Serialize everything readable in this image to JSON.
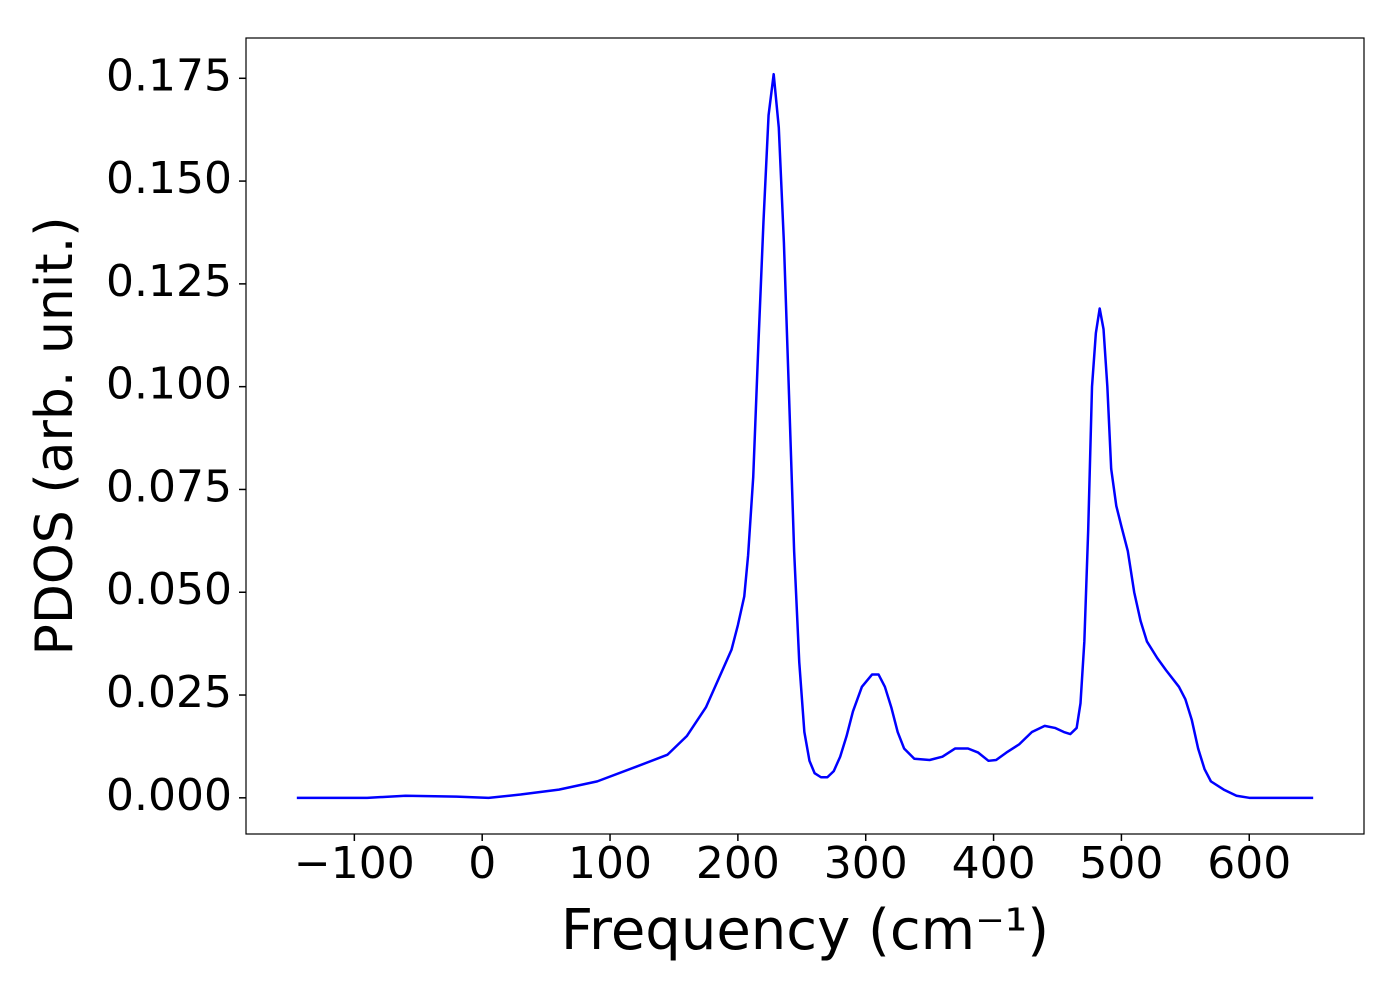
{
  "chart_data": {
    "type": "line",
    "x_label": "Frequency (cm⁻¹)",
    "y_label": "PDOS (arb. unit.)",
    "x": [
      -145,
      -90,
      -60,
      -20,
      5,
      30,
      60,
      90,
      120,
      145,
      160,
      175,
      185,
      195,
      200,
      205,
      208,
      212,
      216,
      220,
      224,
      228,
      232,
      236,
      240,
      244,
      248,
      252,
      256,
      260,
      265,
      270,
      275,
      280,
      285,
      290,
      297,
      305,
      310,
      315,
      320,
      325,
      330,
      338,
      350,
      360,
      370,
      380,
      388,
      396,
      402,
      410,
      420,
      430,
      440,
      448,
      455,
      460,
      465,
      468,
      471,
      474,
      477,
      480,
      483,
      486,
      489,
      492,
      496,
      500,
      505,
      510,
      515,
      520,
      528,
      535,
      545,
      550,
      555,
      560,
      565,
      570,
      580,
      590,
      600,
      650
    ],
    "series": [
      {
        "name": "PDOS",
        "color": "#0000ff",
        "values": [
          0,
          0,
          0.0005,
          0.0003,
          0,
          0.0008,
          0.002,
          0.004,
          0.0075,
          0.0105,
          0.015,
          0.022,
          0.029,
          0.036,
          0.042,
          0.049,
          0.059,
          0.078,
          0.11,
          0.14,
          0.166,
          0.176,
          0.163,
          0.135,
          0.098,
          0.06,
          0.033,
          0.016,
          0.009,
          0.006,
          0.005,
          0.005,
          0.0065,
          0.01,
          0.015,
          0.021,
          0.027,
          0.03,
          0.03,
          0.027,
          0.022,
          0.016,
          0.012,
          0.0095,
          0.0092,
          0.01,
          0.012,
          0.012,
          0.011,
          0.009,
          0.0092,
          0.011,
          0.013,
          0.016,
          0.0175,
          0.017,
          0.016,
          0.0155,
          0.017,
          0.023,
          0.038,
          0.065,
          0.1,
          0.113,
          0.119,
          0.114,
          0.1,
          0.08,
          0.071,
          0.066,
          0.06,
          0.05,
          0.043,
          0.038,
          0.034,
          0.031,
          0.027,
          0.024,
          0.019,
          0.012,
          0.007,
          0.004,
          0.002,
          0.0005,
          0,
          0
        ]
      }
    ],
    "xlim": [
      -184.75,
      689.75
    ],
    "ylim": [
      -0.0088,
      0.1848
    ],
    "xticks": [
      {
        "value": -100,
        "label": "−100"
      },
      0,
      100,
      200,
      300,
      400,
      500,
      600
    ],
    "yticks": [
      {
        "value": 0,
        "label": "0.000"
      },
      {
        "value": 0.025,
        "label": "0.025"
      },
      {
        "value": 0.05,
        "label": "0.050"
      },
      {
        "value": 0.075,
        "label": "0.075"
      },
      {
        "value": 0.1,
        "label": "0.100"
      },
      {
        "value": 0.125,
        "label": "0.125"
      },
      {
        "value": 0.15,
        "label": "0.150"
      },
      {
        "value": 0.175,
        "label": "0.175"
      }
    ]
  }
}
